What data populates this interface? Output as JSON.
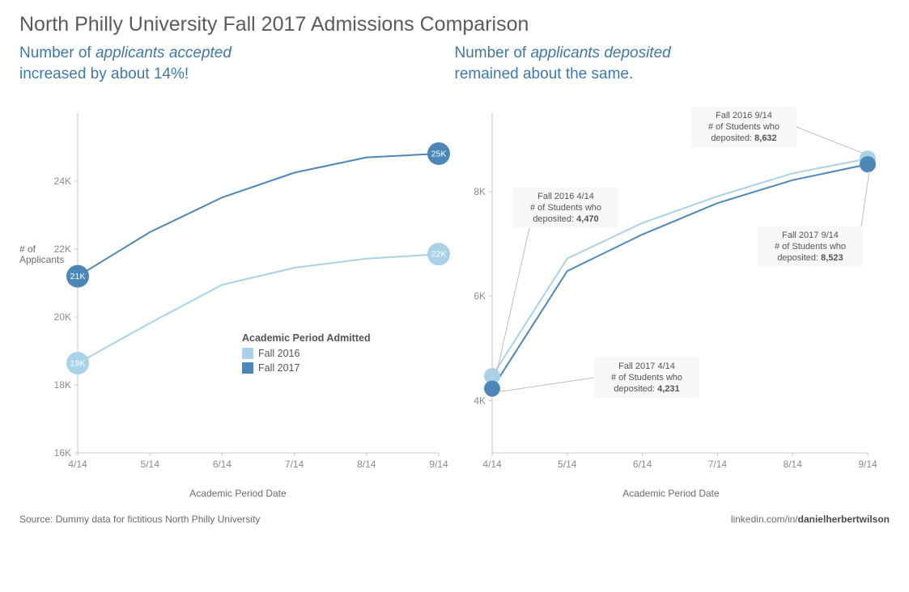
{
  "title": "North Philly University Fall 2017 Admissions Comparison",
  "title_color": "#5b5b5b",
  "title_fontsize": 25,
  "subtitle_color": "#3f78a8",
  "subtitle_fontsize": 19,
  "left_sub_line1_prefix": "Number of ",
  "left_sub_line1_em": "applicants accepted",
  "left_sub_line2": "increased by about 14%!",
  "right_sub_line1_prefix": "Number of ",
  "right_sub_line1_em": "applicants deposited",
  "right_sub_line2": "remained about the same.",
  "colors": {
    "fall2016": "#a9d2e6",
    "fall2017": "#4d87b6",
    "axis": "#c9c9c9",
    "tick_text": "#8a8a8a"
  },
  "legend": {
    "title": "Academic Period Admitted",
    "items": [
      "Fall 2016",
      "Fall 2017"
    ]
  },
  "x_axis": {
    "label": "Academic Period Date",
    "ticks": [
      "4/14",
      "5/14",
      "6/14",
      "7/14",
      "8/14",
      "9/14"
    ]
  },
  "chart1": {
    "type": "line",
    "y_label_line1": "# of",
    "y_label_line2": "Applicants",
    "ylim": [
      16000,
      26000
    ],
    "yticks": [
      16000,
      18000,
      20000,
      22000,
      24000
    ],
    "ytick_labels": [
      "16K",
      "18K",
      "20K",
      "22K",
      "24K"
    ],
    "series": {
      "fall2016": [
        18640,
        19820,
        20950,
        21450,
        21720,
        21850
      ],
      "fall2017": [
        21200,
        22500,
        23520,
        24250,
        24700,
        24810
      ]
    },
    "end_labels": {
      "fall2016_start": "19K",
      "fall2016_end": "22K",
      "fall2017_start": "21K",
      "fall2017_end": "25K"
    },
    "marker_radius": 14
  },
  "chart2": {
    "type": "line",
    "ylim": [
      3000,
      9500
    ],
    "yticks": [
      4000,
      6000,
      8000
    ],
    "ytick_labels": [
      "4K",
      "6K",
      "8K"
    ],
    "series": {
      "fall2016": [
        4470,
        6720,
        7400,
        7910,
        8350,
        8632
      ],
      "fall2017": [
        4231,
        6480,
        7180,
        7780,
        8220,
        8523
      ]
    },
    "marker_radius": 10,
    "callouts": {
      "c1_l1": "Fall 2016  4/14",
      "c1_l2": "# of Students who",
      "c1_l3a": "deposited: ",
      "c1_l3b": "4,470",
      "c2_l1": "Fall 2016  9/14",
      "c2_l2": "# of Students who",
      "c2_l3a": "deposited: ",
      "c2_l3b": "8,632",
      "c3_l1": "Fall 2017  4/14",
      "c3_l2": "# of Students who",
      "c3_l3a": "deposited: ",
      "c3_l3b": "4,231",
      "c4_l1": "Fall 2017  9/14",
      "c4_l2": "# of Students who",
      "c4_l3a": "deposited: ",
      "c4_l3b": "8,523"
    }
  },
  "footer": {
    "source": "Source:  Dummy data for fictitious North Philly University",
    "link_prefix": "linkedin.com/in/",
    "link_bold": "danielherbertwilson"
  }
}
